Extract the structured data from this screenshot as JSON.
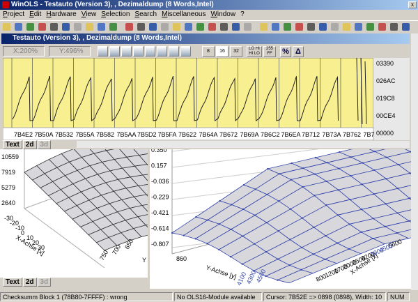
{
  "title_bar": {
    "title": "WinOLS - Testauto (Version 3), , Dezimaldump (8 Words,Intel)"
  },
  "menu": [
    "Project",
    "Edit",
    "Hardware",
    "View",
    "Selection",
    "Search",
    "Miscellaneous",
    "Window",
    "?"
  ],
  "window": {
    "title": "Testauto (Version 3), , Dezimaldump (8 Words,Intel)",
    "x_zoom": "X:200%",
    "y_zoom": "Y:496%",
    "width_buttons": [
      "8",
      "16",
      "32"
    ],
    "byte_order": [
      "LO HI",
      "HI LO"
    ],
    "number_base": [
      "255",
      "FF"
    ],
    "percent": "%",
    "delta": "Δ"
  },
  "plot_2d": {
    "scale": [
      "03390",
      "026AC",
      "019C8",
      "00CE4",
      "00000"
    ],
    "addresses": [
      "7B4E2",
      "7B50A",
      "7B532",
      "7B55A",
      "7B582",
      "7B5AA",
      "7B5D2",
      "7B5FA",
      "7B622",
      "7B64A",
      "7B672",
      "7B69A",
      "7B6C2",
      "7B6EA",
      "7B712",
      "7B73A",
      "7B762",
      "7B7"
    ]
  },
  "tabs": [
    "Text",
    "2d",
    "3d"
  ],
  "view_left": {
    "z_labels": [
      "10559",
      "7919",
      "5279",
      "2640"
    ],
    "x_labels": [
      "-30",
      "-20",
      "-10",
      "0",
      "10",
      "20",
      "30"
    ],
    "x_axis": "X-Achse [x]",
    "y_labels": [
      "750",
      "700",
      "650"
    ],
    "y_axis": "Y"
  },
  "view_right": {
    "z_labels": [
      "0.350",
      "0.157",
      "-0.036",
      "-0.229",
      "-0.421",
      "-0.614",
      "-0.807"
    ],
    "left_labels": [
      "860"
    ],
    "y_labels": [
      "4100",
      "4300",
      "4500"
    ],
    "y_axis": "Y-Achse [y]",
    "x_labels": [
      "5600",
      "4500",
      "3900",
      "3200",
      "2500",
      "2000",
      "1700",
      "1200",
      "800"
    ],
    "x_axis": "X-Achse [x]"
  },
  "status": [
    "Checksumm Block 1 (78B80-7FFFF) : wrong",
    "No OLS16-Module available",
    "Cursor: 7B52E => 0898 (0898), Width: 10",
    "NUM"
  ]
}
